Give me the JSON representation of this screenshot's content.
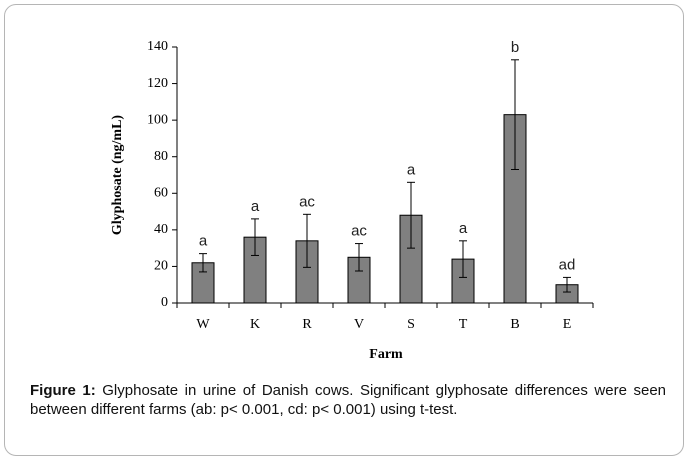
{
  "chart_data": {
    "type": "bar",
    "categories": [
      "W",
      "K",
      "R",
      "V",
      "S",
      "T",
      "B",
      "E"
    ],
    "values": [
      22,
      36,
      34,
      25,
      48,
      24,
      103,
      10
    ],
    "errors": [
      5,
      10,
      14.5,
      7.5,
      18,
      10,
      30,
      4
    ],
    "annotations": [
      "a",
      "a",
      "ac",
      "ac",
      "a",
      "a",
      "b",
      "ad"
    ],
    "color": "#808080",
    "ylim": [
      0,
      140
    ],
    "yticks": [
      0,
      20,
      40,
      60,
      80,
      100,
      120,
      140
    ],
    "ylabel": "Glyphosate (ng/mL)",
    "xlabel": "Farm",
    "grid": false
  },
  "caption": {
    "label": "Figure 1:",
    "text": " Glyphosate in urine of Danish cows. Significant glyphosate differences were seen between different farms (ab:  p< 0.001, cd:  p< 0.001) using t-test."
  }
}
